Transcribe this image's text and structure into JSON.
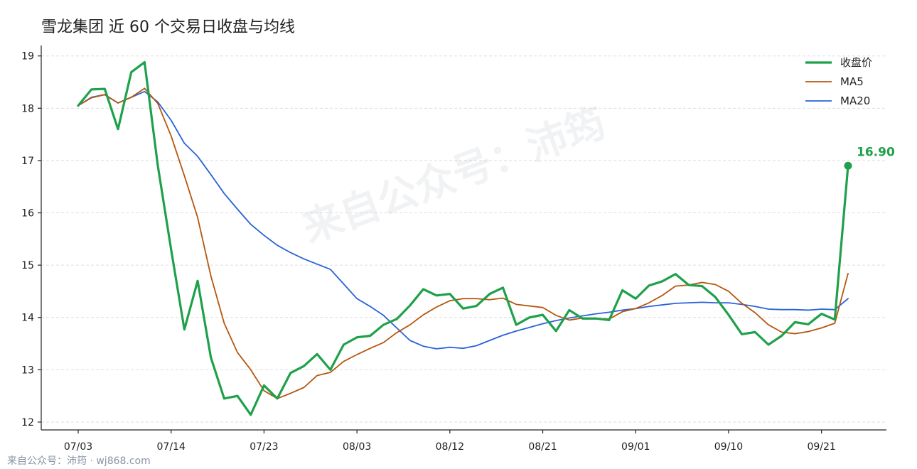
{
  "title": "雪龙集团 近 60 个交易日收盘与均线",
  "footer": "来自公众号：沛筠 · wj868.com",
  "watermark": "来自公众号：沛筠",
  "colors": {
    "close": "#1fa04a",
    "ma5": "#b5560f",
    "ma20": "#2a62d9",
    "grid": "#dddddd",
    "axis": "#222222"
  },
  "chart_data": {
    "type": "line",
    "title": "雪龙集团 近 60 个交易日收盘与均线",
    "xlabel": "",
    "ylabel": "",
    "ylim": [
      11.85,
      19.2
    ],
    "yticks": [
      12,
      13,
      14,
      15,
      16,
      17,
      18,
      19
    ],
    "x_tick_labels": [
      "07/03",
      "07/14",
      "07/23",
      "08/03",
      "08/12",
      "08/21",
      "09/01",
      "09/10",
      "09/21"
    ],
    "x_tick_indices": [
      0,
      7,
      14,
      21,
      28,
      35,
      42,
      49,
      56
    ],
    "grid": "horizontal dashed",
    "legend_position": "top-right",
    "last_value_label": "16.90",
    "series": [
      {
        "name": "收盘价",
        "values": [
          18.05,
          18.36,
          18.37,
          17.6,
          18.69,
          18.88,
          16.9,
          15.3,
          13.77,
          14.7,
          13.23,
          12.45,
          12.5,
          12.14,
          12.7,
          12.45,
          12.94,
          13.07,
          13.3,
          13.0,
          13.48,
          13.62,
          13.65,
          13.86,
          13.97,
          14.23,
          14.54,
          14.42,
          14.45,
          14.17,
          14.22,
          14.45,
          14.57,
          13.86,
          14.0,
          14.05,
          13.74,
          14.14,
          13.98,
          13.98,
          13.95,
          14.52,
          14.36,
          14.61,
          14.69,
          14.83,
          14.62,
          14.6,
          14.39,
          14.05,
          13.68,
          13.72,
          13.48,
          13.65,
          13.91,
          13.87,
          14.07,
          13.96,
          16.9
        ]
      },
      {
        "name": "MA5",
        "values": [
          18.05,
          18.2,
          18.26,
          18.1,
          18.21,
          18.38,
          18.09,
          17.47,
          16.71,
          15.91,
          14.79,
          13.89,
          13.33,
          13.0,
          12.6,
          12.45,
          12.55,
          12.66,
          12.89,
          12.95,
          13.16,
          13.29,
          13.41,
          13.52,
          13.71,
          13.86,
          14.05,
          14.2,
          14.32,
          14.36,
          14.36,
          14.34,
          14.37,
          14.25,
          14.22,
          14.19,
          14.04,
          13.95,
          13.99,
          13.98,
          13.97,
          14.11,
          14.17,
          14.28,
          14.42,
          14.6,
          14.62,
          14.67,
          14.63,
          14.5,
          14.27,
          14.09,
          13.86,
          13.72,
          13.69,
          13.73,
          13.8,
          13.89,
          14.84
        ]
      },
      {
        "name": "MA20",
        "values": [
          18.05,
          18.21,
          18.26,
          18.1,
          18.21,
          18.32,
          18.12,
          17.77,
          17.33,
          17.08,
          16.73,
          16.37,
          16.07,
          15.78,
          15.57,
          15.38,
          15.24,
          15.12,
          15.02,
          14.92,
          14.64,
          14.36,
          14.21,
          14.04,
          13.8,
          13.56,
          13.45,
          13.4,
          13.43,
          13.41,
          13.46,
          13.56,
          13.66,
          13.74,
          13.81,
          13.88,
          13.94,
          13.99,
          14.03,
          14.07,
          14.1,
          14.14,
          14.17,
          14.21,
          14.24,
          14.27,
          14.28,
          14.29,
          14.28,
          14.28,
          14.25,
          14.21,
          14.16,
          14.15,
          14.15,
          14.14,
          14.16,
          14.15,
          14.36
        ]
      }
    ]
  }
}
